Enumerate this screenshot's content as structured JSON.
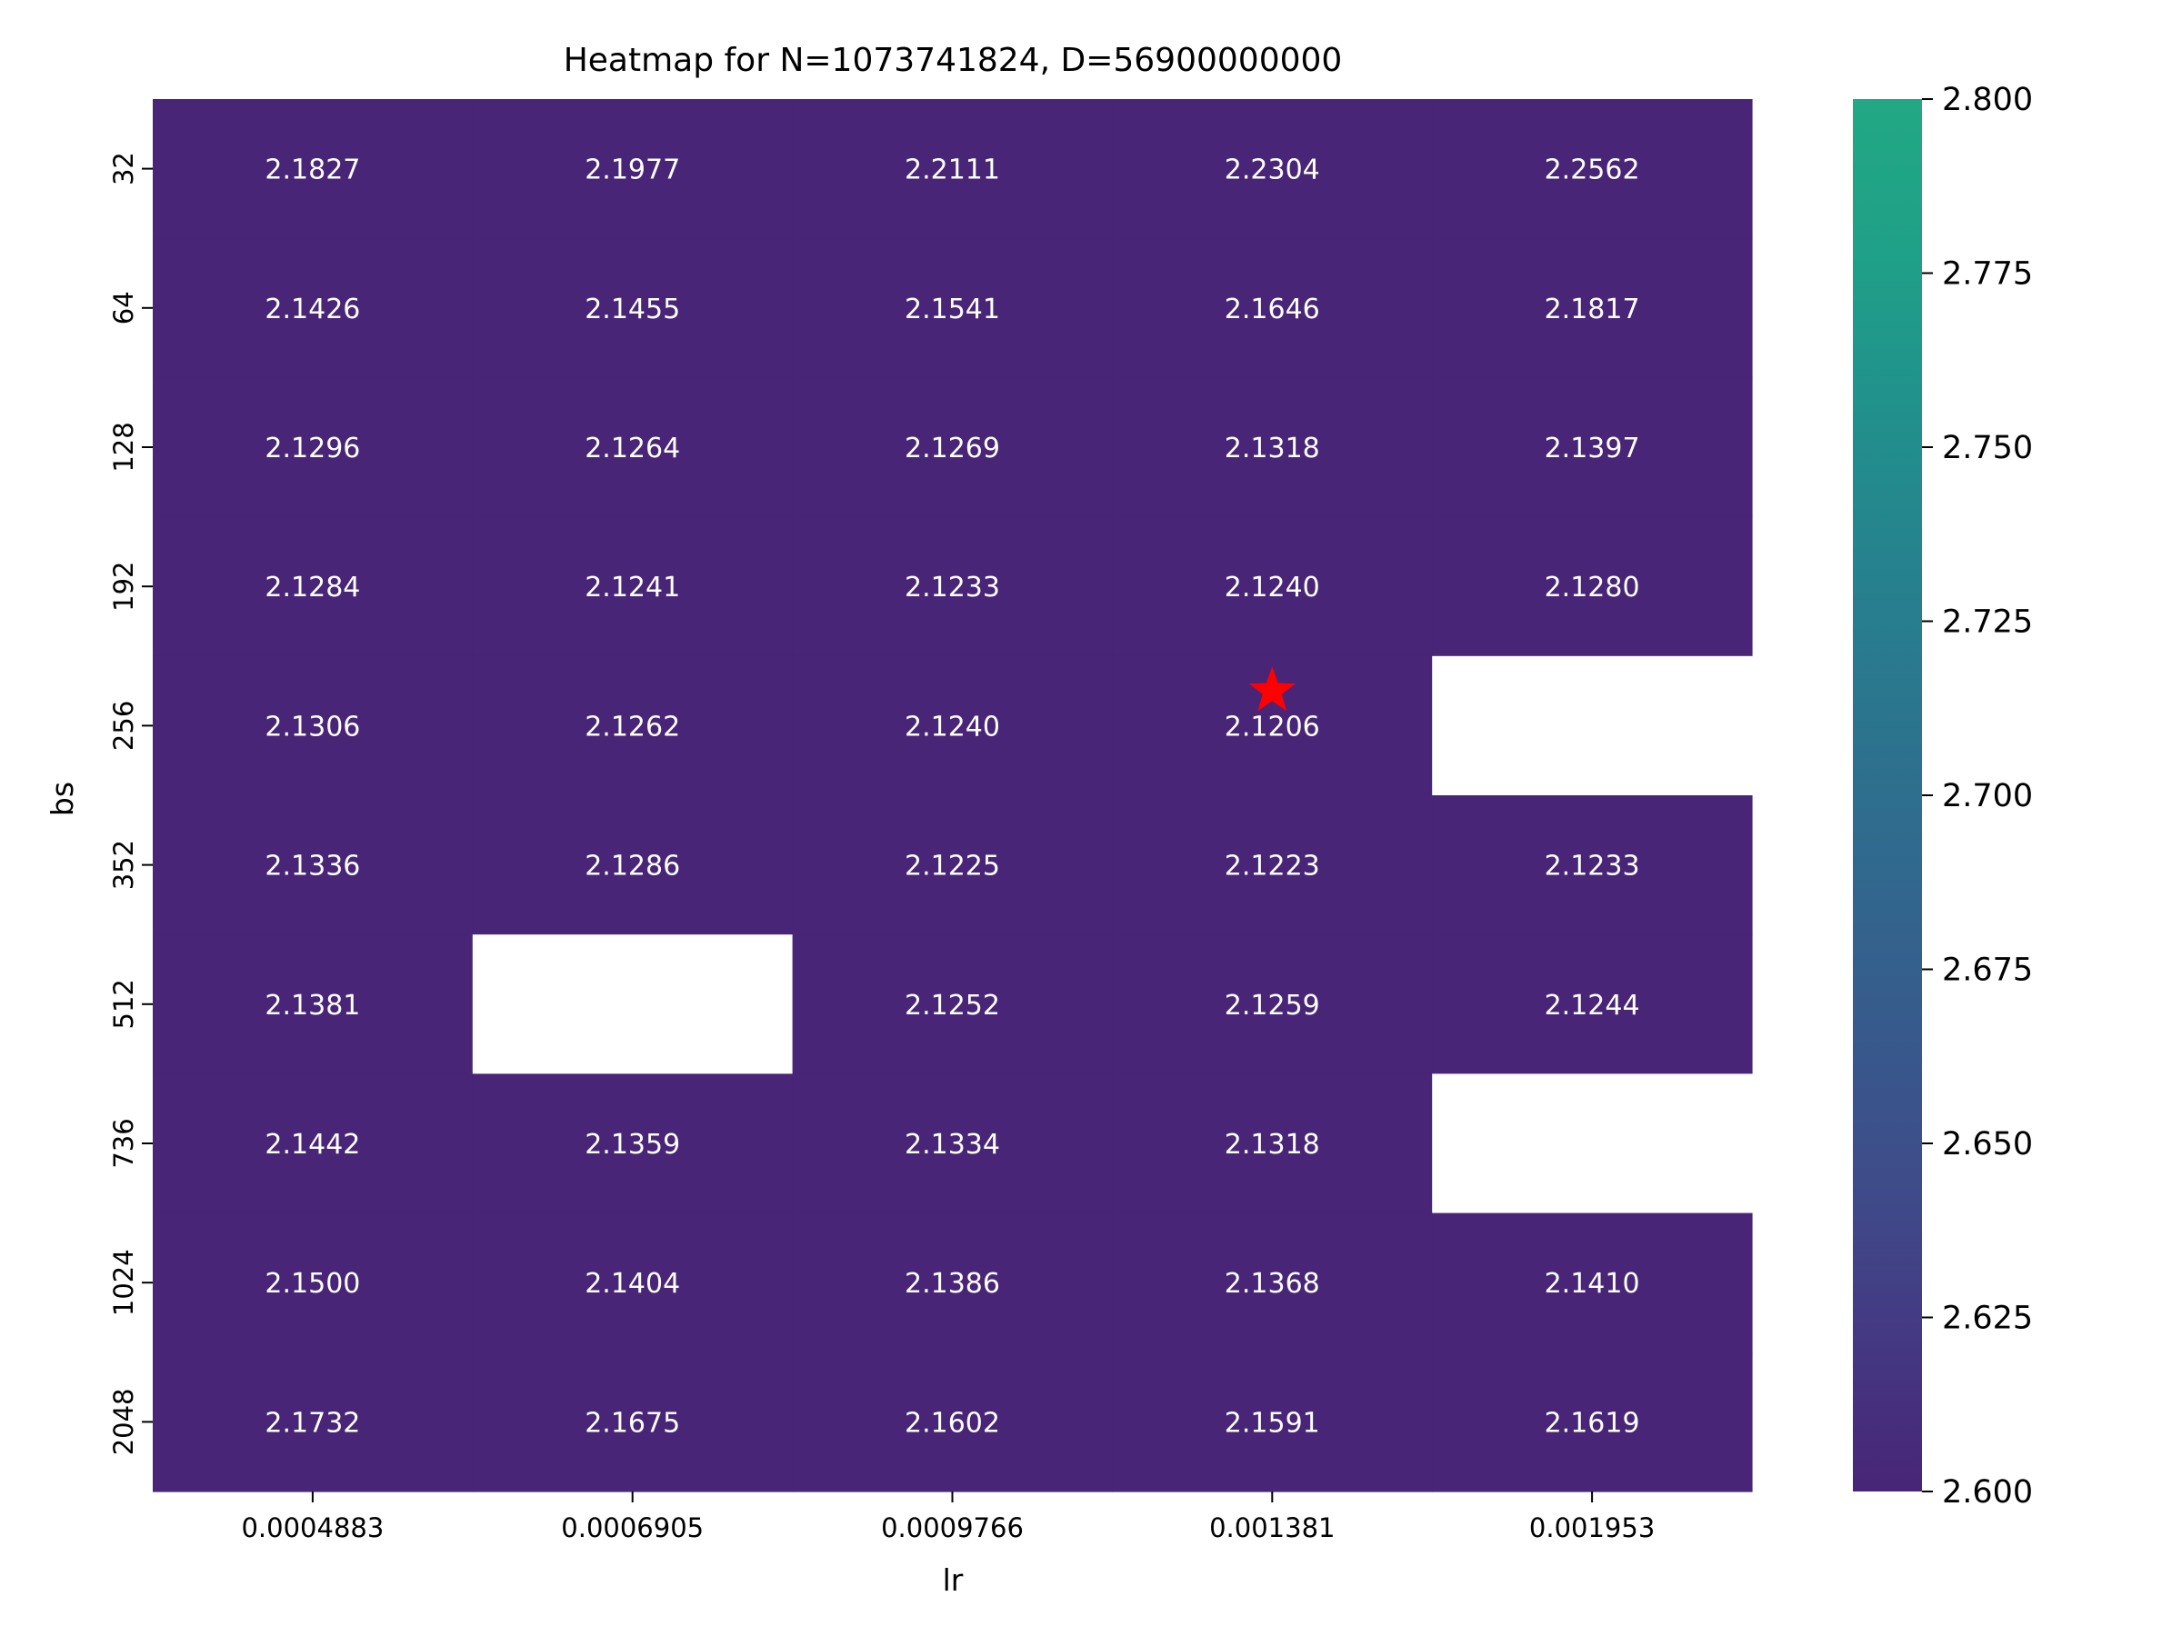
{
  "chart_data": {
    "type": "heatmap",
    "title": "Heatmap for N=1073741824, D=56900000000",
    "xlabel": "lr",
    "ylabel": "bs",
    "x_categories": [
      "0.0004883",
      "0.0006905",
      "0.0009766",
      "0.001381",
      "0.001953"
    ],
    "y_categories": [
      "32",
      "64",
      "128",
      "192",
      "256",
      "352",
      "512",
      "736",
      "1024",
      "2048"
    ],
    "values": [
      [
        2.1827,
        2.1977,
        2.2111,
        2.2304,
        2.2562
      ],
      [
        2.1426,
        2.1455,
        2.1541,
        2.1646,
        2.1817
      ],
      [
        2.1296,
        2.1264,
        2.1269,
        2.1318,
        2.1397
      ],
      [
        2.1284,
        2.1241,
        2.1233,
        2.124,
        2.128
      ],
      [
        2.1306,
        2.1262,
        2.124,
        2.1206,
        null
      ],
      [
        2.1336,
        2.1286,
        2.1225,
        2.1223,
        2.1233
      ],
      [
        2.1381,
        null,
        2.1252,
        2.1259,
        2.1244
      ],
      [
        2.1442,
        2.1359,
        2.1334,
        2.1318,
        null
      ],
      [
        2.15,
        2.1404,
        2.1386,
        2.1368,
        2.141
      ],
      [
        2.1732,
        2.1675,
        2.1602,
        2.1591,
        2.1619
      ]
    ],
    "colorbar": {
      "vmin": 2.6,
      "vmax": 2.8,
      "ticks": [
        "2.600",
        "2.625",
        "2.650",
        "2.675",
        "2.700",
        "2.725",
        "2.750",
        "2.775",
        "2.800"
      ]
    },
    "colormap": [
      "#482576",
      "#443983",
      "#3e4c8a",
      "#375a8c",
      "#31688e",
      "#2b758e",
      "#26828e",
      "#21918c",
      "#1fa088",
      "#22a884"
    ],
    "cell_color": "#482576",
    "missing_color": "#ffffff",
    "text_color": "#ffffff",
    "marker": {
      "shape": "star",
      "color": "#ff0000",
      "row": 4,
      "col": 3
    }
  }
}
